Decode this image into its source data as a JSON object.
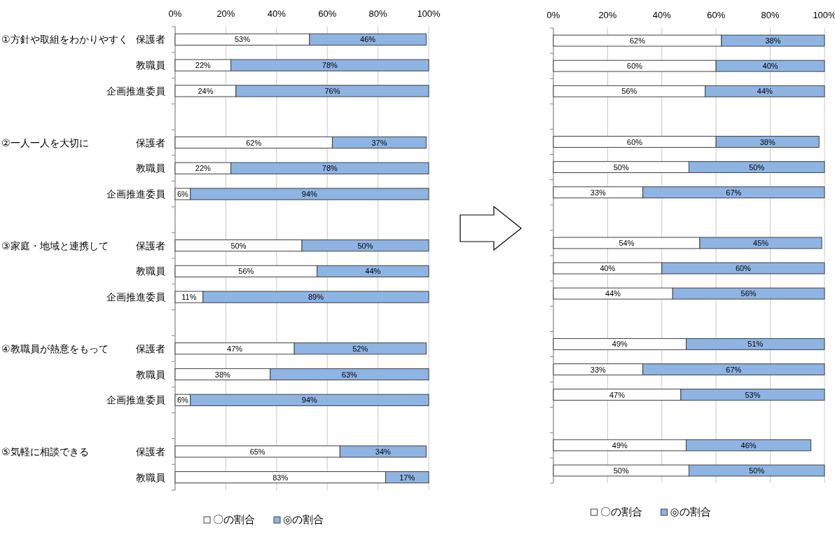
{
  "chart_data": [
    {
      "type": "bar",
      "orientation": "horizontal",
      "stacked": true,
      "grid": "x",
      "legend": "bottom",
      "categories": [
        "保護者",
        "教職員",
        "企画推進委員",
        null,
        "保護者",
        "教職員",
        "企画推進委員",
        null,
        "保護者",
        "教職員",
        "企画推進委員",
        null,
        "保護者",
        "教職員",
        "企画推進委員",
        null,
        "保護者",
        "教職員"
      ],
      "annotations": [
        "①方針や取組をわかりやすく",
        "②一人一人を大切に",
        "③家庭・地域と連携して",
        "④教職員が熱意をもって",
        "⑤気軽に相談できる"
      ],
      "xlim": [
        0,
        100
      ],
      "xticks": [
        {
          "value": 0,
          "label": "0%"
        },
        {
          "value": 20,
          "label": "20%"
        },
        {
          "value": 40,
          "label": "40%"
        },
        {
          "value": 60,
          "label": "60%"
        },
        {
          "value": 80,
          "label": "80%"
        },
        {
          "value": 100,
          "label": "100%"
        }
      ],
      "series": [
        {
          "name": "〇の割合",
          "color": "#ffffff",
          "values": [
            53,
            22,
            24,
            null,
            62,
            22,
            6,
            null,
            50,
            56,
            11,
            null,
            47,
            37.5,
            6,
            null,
            65,
            83
          ],
          "value_labels": [
            "53%",
            "22%",
            "24%",
            null,
            "62%",
            "22%",
            "6%",
            null,
            "50%",
            "56%",
            "11%",
            null,
            "47%",
            "38%",
            "6%",
            null,
            "65%",
            "83%"
          ]
        },
        {
          "name": "◎の割合",
          "color": "#8eb4e3",
          "values": [
            46,
            78,
            76,
            null,
            37,
            78,
            94,
            null,
            50,
            44,
            89,
            null,
            52,
            62.5,
            94,
            null,
            34,
            17
          ],
          "value_labels": [
            "46%",
            "78%",
            "76%",
            null,
            "37%",
            "78%",
            "94%",
            null,
            "50%",
            "44%",
            "89%",
            null,
            "52%",
            "63%",
            "94%",
            null,
            "34%",
            "17%"
          ]
        }
      ]
    },
    {
      "type": "bar",
      "orientation": "horizontal",
      "stacked": true,
      "grid": "x",
      "legend": "bottom",
      "tick_labels": "x",
      "categories": [
        null,
        null,
        null,
        null,
        null,
        null,
        null,
        null,
        null,
        null,
        null,
        null,
        null,
        null,
        null,
        null,
        null,
        null
      ],
      "xlim": [
        0,
        100
      ],
      "xticks": [
        {
          "value": 0,
          "label": "0%"
        },
        {
          "value": 20,
          "label": "20%"
        },
        {
          "value": 40,
          "label": "40%"
        },
        {
          "value": 60,
          "label": "60%"
        },
        {
          "value": 80,
          "label": "80%"
        },
        {
          "value": 100,
          "label": "100%"
        }
      ],
      "series": [
        {
          "name": "〇の割合",
          "color": "#ffffff",
          "values": [
            62,
            60,
            56,
            null,
            60,
            50,
            33,
            null,
            54,
            40,
            44,
            null,
            49,
            33,
            47,
            null,
            49,
            50
          ],
          "value_labels": [
            "62%",
            "60%",
            "56%",
            null,
            "60%",
            "50%",
            "33%",
            null,
            "54%",
            "40%",
            "44%",
            null,
            "49%",
            "33%",
            "47%",
            null,
            "49%",
            "50%"
          ]
        },
        {
          "name": "◎の割合",
          "color": "#8eb4e3",
          "values": [
            38,
            40,
            44,
            null,
            38,
            50,
            67,
            null,
            45,
            60,
            56,
            null,
            51,
            67,
            53,
            null,
            46,
            50
          ],
          "value_labels": [
            "38%",
            "40%",
            "44%",
            null,
            "38%",
            "50%",
            "67%",
            null,
            "45%",
            "60%",
            "56%",
            null,
            "51%",
            "67%",
            "53%",
            null,
            "46%",
            "50%"
          ]
        }
      ]
    }
  ]
}
